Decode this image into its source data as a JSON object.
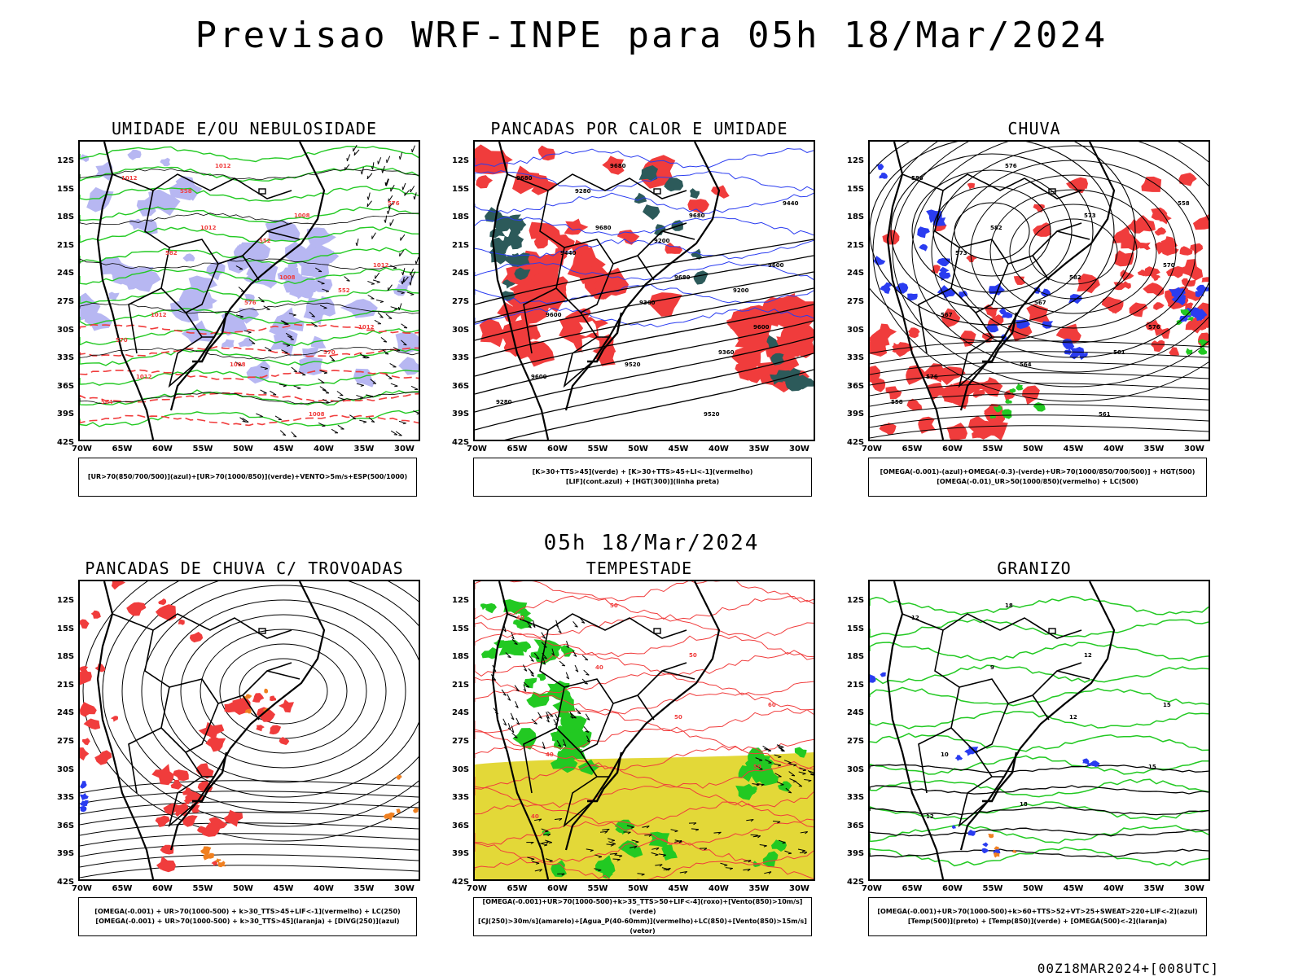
{
  "title": "Previsao WRF-INPE  para 05h 18/Mar/2024",
  "subtitle": "05h 18/Mar/2024",
  "footer": "00Z18MAR2024+[008UTC]",
  "lat_labels": [
    "12S",
    "15S",
    "18S",
    "21S",
    "24S",
    "27S",
    "30S",
    "33S",
    "36S",
    "39S",
    "42S"
  ],
  "lon_labels": [
    "70W",
    "65W",
    "60W",
    "55W",
    "50W",
    "45W",
    "40W",
    "35W",
    "30W"
  ],
  "colors": {
    "red": "#f03c3c",
    "green": "#22c922",
    "blue": "#2a3cf0",
    "lavender": "#b7b7f2",
    "teal": "#2c5a5a",
    "yellow": "#e3d838",
    "orange": "#f08020",
    "black": "#000000"
  },
  "panels": [
    {
      "title": "UMIDADE E/OU NEBULOSIDADE",
      "legend": [
        "[UR>70(850/700/500)](azul)+[UR>70(1000/850)](verde)+VENTO>5m/s+ESP(500/1000)"
      ],
      "contour_labels": [
        "1012",
        "1012",
        "1008",
        "1012",
        "1012",
        "1012",
        "1008",
        "1012",
        "1012",
        "1008",
        "1008",
        "576",
        "582",
        "576",
        "570",
        "564",
        "558",
        "552",
        "552",
        "570"
      ]
    },
    {
      "title": "PANCADAS POR CALOR E UMIDADE",
      "legend": [
        "[K>30+TTS>45](verde) + [K>30+TTS>45+LI<-1](vermelho)",
        "[LIF](cont.azul) + [HGT(300)](linha preta)"
      ],
      "contour_labels": [
        "9680",
        "9680",
        "9680",
        "9600",
        "9600",
        "9680",
        "9680",
        "9600",
        "9600",
        "9520",
        "9520",
        "9440",
        "9440",
        "9360",
        "9360",
        "9280",
        "9280",
        "9200",
        "9200"
      ]
    },
    {
      "title": "CHUVA",
      "legend": [
        "[OMEGA(-0.001)-(azul)+OMEGA(-0.3)-(verde)+UR>70(1000/850/700/500)] + HGT(500)",
        "[OMEGA(-0.01)_UR>50(1000/850)(vermelho) + LC(500)"
      ],
      "contour_labels": [
        "588",
        "582",
        "582",
        "576",
        "576",
        "576",
        "573",
        "570",
        "567",
        "564",
        "561",
        "558",
        "573",
        "567",
        "561",
        "558"
      ]
    },
    {
      "title": "PANCADAS DE CHUVA C/ TROVOADAS",
      "legend": [
        "[OMEGA(-0.001) + UR>70(1000-500) + k>30_TTS>45+LIF<-1](vermelho) + LC(250)",
        "[OMEGA(-0.001) + UR>70(1000-500) + k>30_TTS>45](laranja) + [DIVG(250)](azul)"
      ],
      "contour_labels": []
    },
    {
      "title": "TEMPESTADE",
      "legend": [
        "[OMEGA(-0.001)+UR>70(1000-500)+k>35_TTS>50+LIF<-4](roxo)+[Vento(850)>10m/s](verde)",
        "[CJ(250)>30m/s](amarelo)+[Agua_P(40-60mm)](vermelho)+LC(850)+[Vento(850)>15m/s](vetor)"
      ],
      "contour_labels": [
        "40",
        "40",
        "50",
        "50",
        "40",
        "50",
        "50",
        "60",
        "40"
      ]
    },
    {
      "title": "GRANIZO",
      "legend": [
        "[OMEGA(-0.001)+UR>70(1000-500)+k>60+TTS>52+VT>25+SWEAT>220+LIF<-2](azul)",
        "[Temp(500)](preto) + [Temp(850)](verde) + [OMEGA(500)<-2](laranja)"
      ],
      "contour_labels": [
        "12",
        "9",
        "12",
        "15",
        "12",
        "18",
        "12",
        "15",
        "10",
        "18"
      ]
    }
  ]
}
